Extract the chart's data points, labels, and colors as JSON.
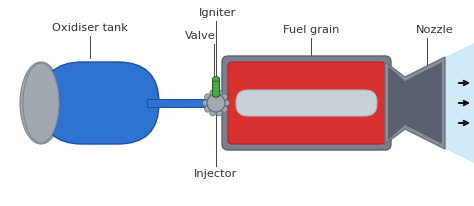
{
  "bg_color": "#ffffff",
  "labels": {
    "oxidiser_tank": "Oxidiser tank",
    "valve": "Valve",
    "igniter": "Igniter",
    "fuel_grain": "Fuel grain",
    "nozzle": "Nozzle",
    "injector": "Injector"
  },
  "tank_blue": "#2e72d2",
  "tank_blue_dark": "#1a4fa0",
  "tank_gray": "#a0a8b0",
  "tank_gray_dark": "#808890",
  "combustion_red": "#d93030",
  "combustion_dark": "#b82020",
  "fuel_gray_light": "#c8d0d8",
  "fuel_gray": "#b0b8c0",
  "casing_gray": "#7a8090",
  "casing_dark": "#5a6070",
  "nozzle_gray": "#8a9098",
  "nozzle_dark": "#6a7080",
  "connector_gray": "#a0a8b0",
  "igniter_green": "#4aaa40",
  "exhaust_blue": "#b0ddf0",
  "arrow_dark": "#111111",
  "line_color": "#444444",
  "text_color": "#333333"
}
